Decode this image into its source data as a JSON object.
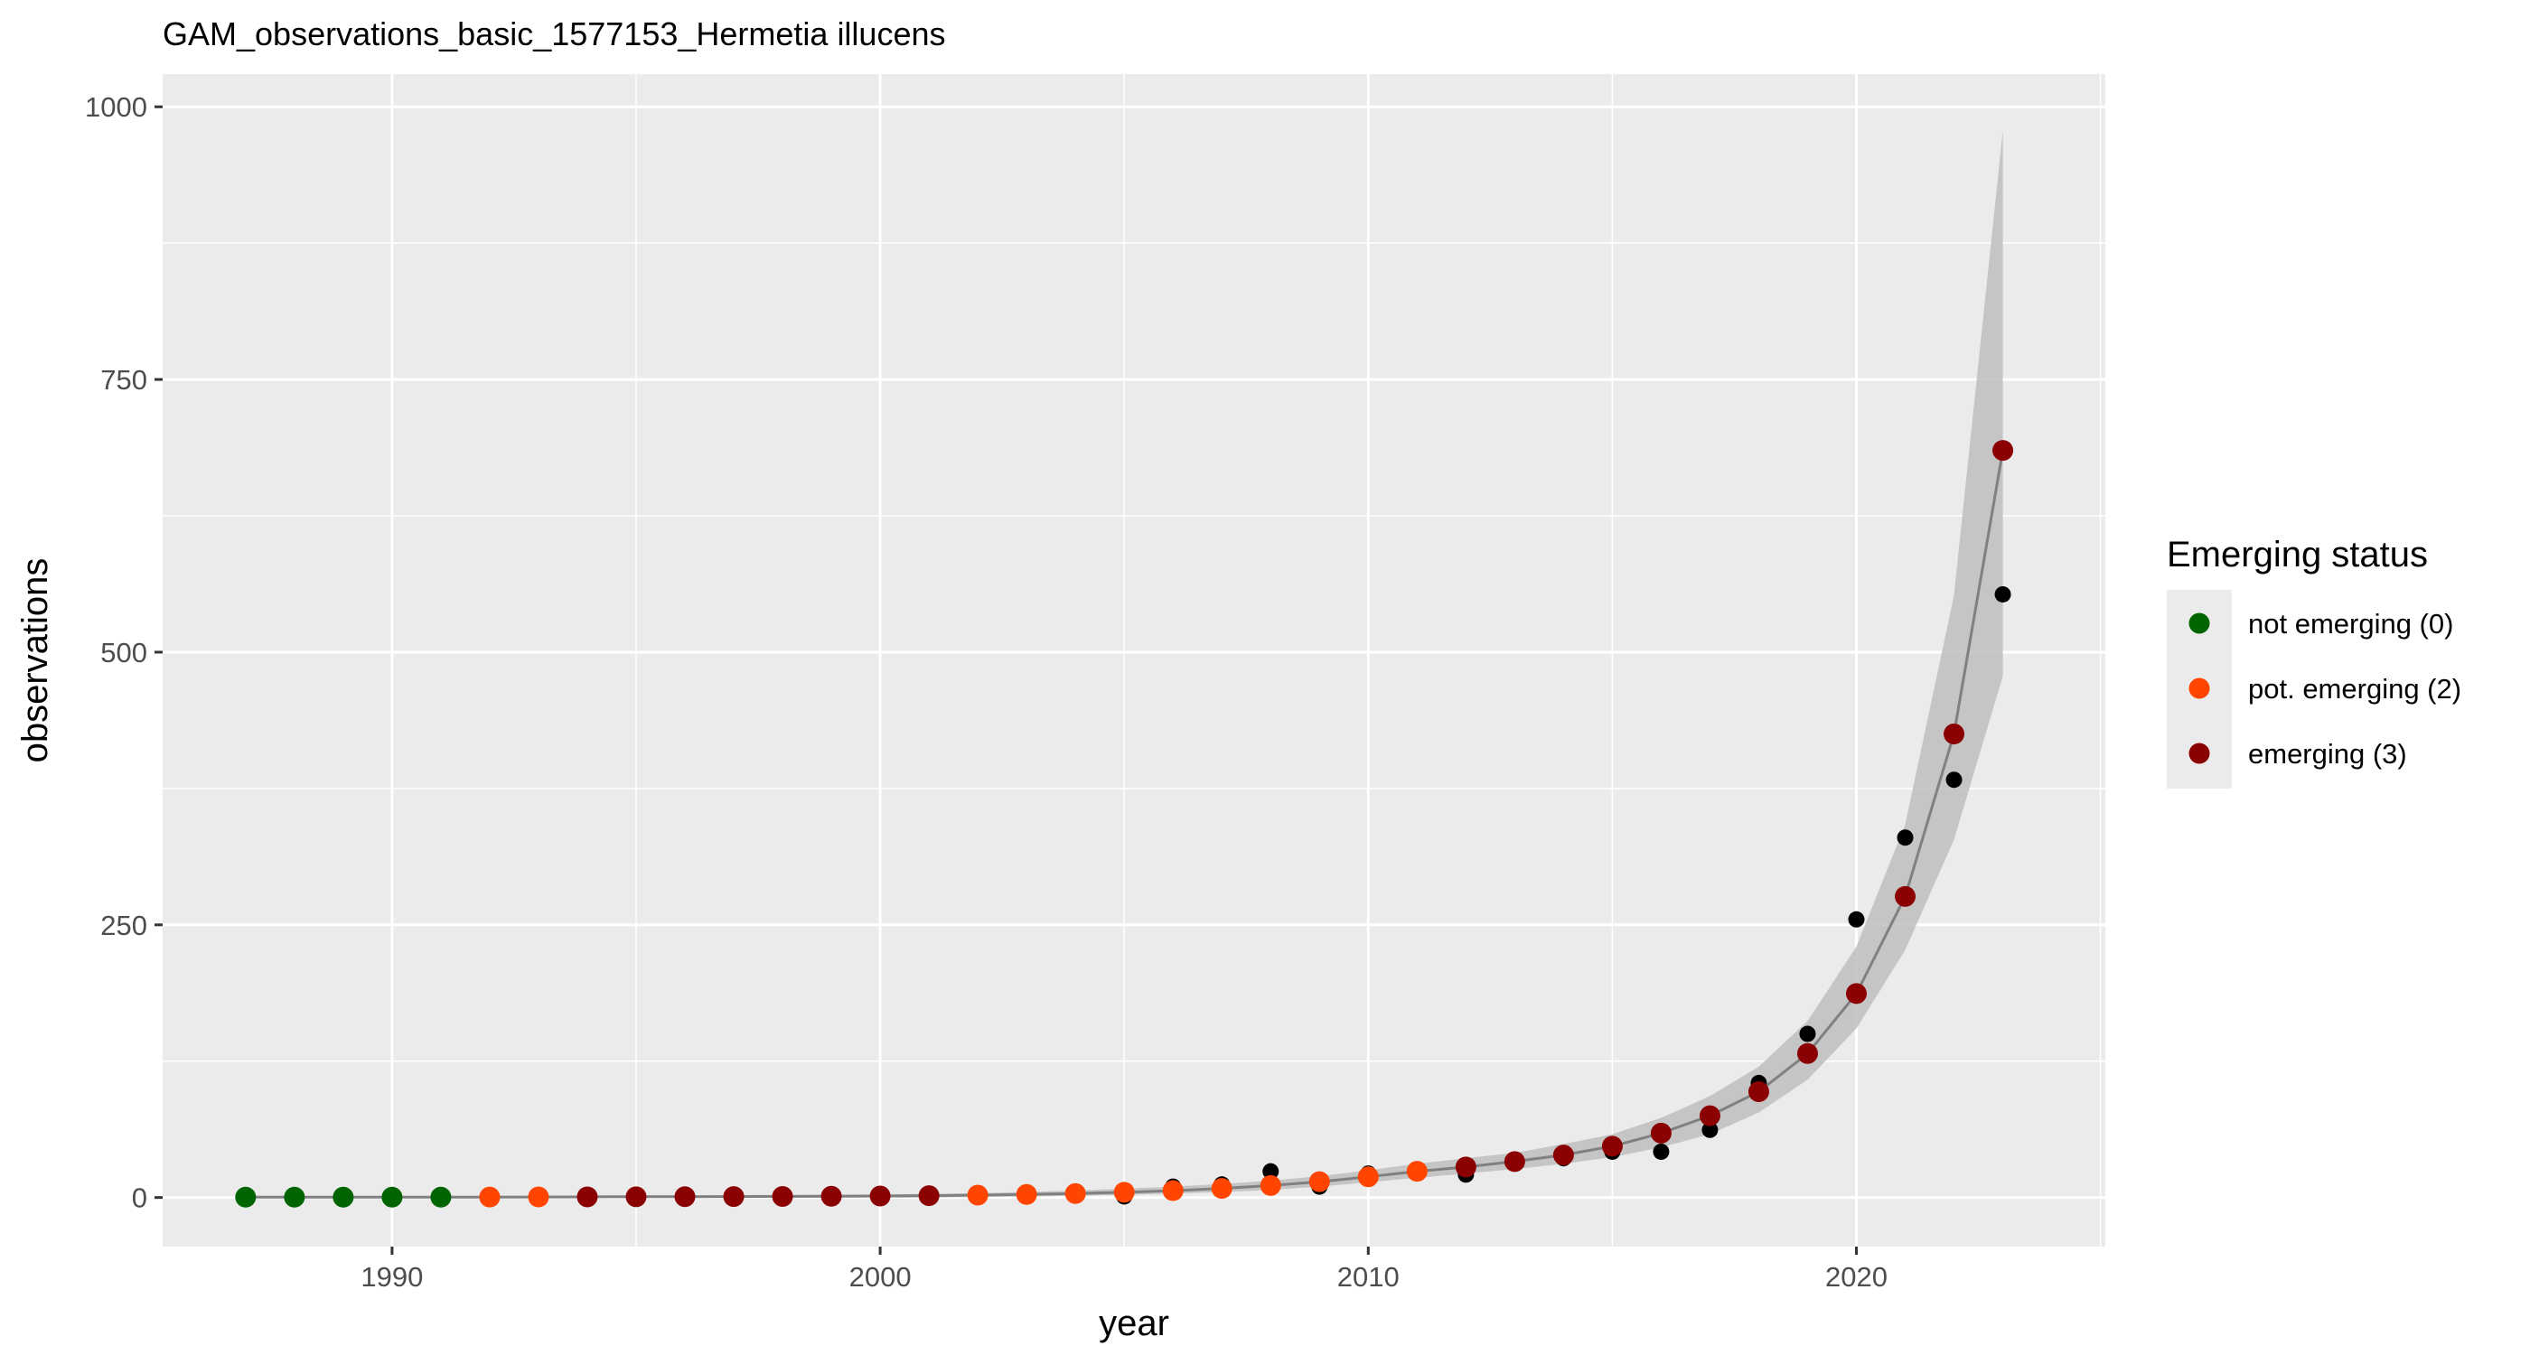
{
  "chart_data": {
    "type": "scatter",
    "title": "GAM_observations_basic_1577153_Hermetia illucens",
    "xlabel": "year",
    "ylabel": "observations",
    "xlim": [
      1985.3,
      2025.1
    ],
    "ylim": [
      -45,
      1030
    ],
    "x_ticks": [
      1990,
      2000,
      2010,
      2020
    ],
    "y_ticks": [
      0,
      250,
      500,
      750,
      1000
    ],
    "grid": true,
    "legend": {
      "title": "Emerging status",
      "position": "right",
      "entries": [
        {
          "label": "not emerging (0)",
          "color": "#006400"
        },
        {
          "label": "pot. emerging (2)",
          "color": "#FF4500"
        },
        {
          "label": "emerging (3)",
          "color": "#8B0000"
        }
      ]
    },
    "colors": {
      "panel_background": "#EBEBEB",
      "grid": "#FFFFFF",
      "ribbon": "#BEBEBE",
      "fit_line": "#808080",
      "observed_points": "#000000"
    },
    "observed": {
      "x": [
        1987,
        1988,
        1989,
        1990,
        1991,
        1992,
        1993,
        1994,
        1995,
        1996,
        1997,
        1998,
        1999,
        2000,
        2001,
        2002,
        2003,
        2004,
        2005,
        2006,
        2007,
        2008,
        2009,
        2010,
        2011,
        2012,
        2013,
        2014,
        2015,
        2016,
        2017,
        2018,
        2019,
        2020,
        2021,
        2022,
        2023
      ],
      "y": [
        1,
        0,
        0,
        0,
        0,
        0,
        0,
        0,
        0,
        0,
        0,
        0,
        0,
        0,
        0,
        1,
        2,
        3,
        1,
        10,
        12,
        24,
        10,
        22,
        25,
        21,
        34,
        36,
        42,
        42,
        62,
        105,
        150,
        255,
        330,
        383,
        553
      ]
    },
    "fitted": {
      "x": [
        1987,
        1988,
        1989,
        1990,
        1991,
        1992,
        1993,
        1994,
        1995,
        1996,
        1997,
        1998,
        1999,
        2000,
        2001,
        2002,
        2003,
        2004,
        2005,
        2006,
        2007,
        2008,
        2009,
        2010,
        2011,
        2012,
        2013,
        2014,
        2015,
        2016,
        2017,
        2018,
        2019,
        2020,
        2021,
        2022,
        2023
      ],
      "y": [
        0.3,
        0.3,
        0.3,
        0.3,
        0.3,
        0.4,
        0.5,
        0.6,
        0.7,
        0.8,
        0.9,
        1.0,
        1.2,
        1.4,
        1.7,
        2.2,
        2.8,
        3.7,
        4.8,
        6.3,
        8.3,
        11,
        14.5,
        19,
        24,
        28,
        33,
        39,
        47,
        59,
        75,
        97,
        132,
        187,
        276,
        425,
        685
      ],
      "lower": [
        0,
        0,
        0,
        0,
        0,
        0,
        0,
        0,
        0,
        0,
        0,
        0,
        0,
        0,
        0,
        0.5,
        1.0,
        1.5,
        2.5,
        3.5,
        5,
        7,
        10,
        14,
        18,
        22,
        26,
        31,
        37,
        46,
        58,
        78,
        108,
        155,
        227,
        328,
        478
      ],
      "upper": [
        1,
        1,
        1,
        1,
        1,
        1.2,
        1.4,
        1.6,
        1.8,
        2.0,
        2.2,
        2.4,
        2.6,
        2.9,
        3.3,
        4.0,
        5.0,
        6.5,
        8,
        10,
        12.5,
        15.5,
        19.5,
        25,
        31,
        36,
        41,
        49,
        58,
        73,
        93,
        120,
        162,
        230,
        342,
        552,
        978
      ],
      "status": [
        0,
        0,
        0,
        0,
        0,
        2,
        2,
        3,
        3,
        3,
        3,
        3,
        3,
        3,
        3,
        2,
        2,
        2,
        2,
        2,
        2,
        2,
        2,
        2,
        2,
        3,
        3,
        3,
        3,
        3,
        3,
        3,
        3,
        3,
        3,
        3,
        3
      ]
    }
  }
}
